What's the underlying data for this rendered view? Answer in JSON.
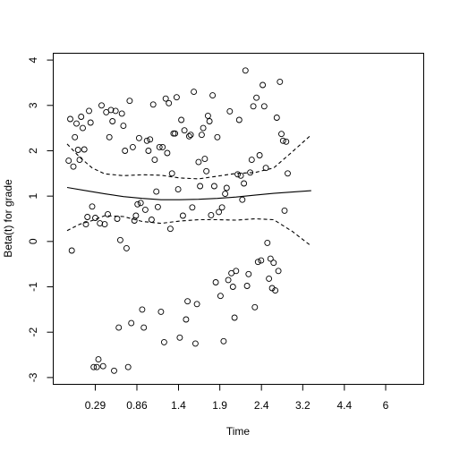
{
  "chart_data": {
    "type": "scatter",
    "title": "",
    "xlabel": "Time",
    "ylabel": "Beta(t) for grade",
    "x_axis": {
      "scale": "rank (transformed)",
      "range": [
        0,
        100
      ],
      "ticks": [
        {
          "label": "0.29",
          "pos": 9
        },
        {
          "label": "0.86",
          "pos": 22.3
        },
        {
          "label": "1.4",
          "pos": 35.6
        },
        {
          "label": "1.9",
          "pos": 48.8
        },
        {
          "label": "2.4",
          "pos": 62.1
        },
        {
          "label": "3.2",
          "pos": 75.3
        },
        {
          "label": "4.4",
          "pos": 88.6
        },
        {
          "label": "6",
          "pos": 101.8
        }
      ]
    },
    "y_axis": {
      "range": [
        -3.15,
        4.15
      ],
      "ticks": [
        -3,
        -2,
        -1,
        0,
        1,
        2,
        3,
        4
      ]
    },
    "grid": false,
    "series": [
      {
        "kind": "points",
        "points": [
          [
            0.5,
            1.78
          ],
          [
            1.0,
            2.7
          ],
          [
            1.5,
            -0.2
          ],
          [
            2.0,
            1.65
          ],
          [
            2.5,
            2.3
          ],
          [
            3.0,
            2.6
          ],
          [
            3.5,
            2.02
          ],
          [
            4.0,
            1.8
          ],
          [
            4.5,
            2.75
          ],
          [
            5.0,
            2.5
          ],
          [
            5.5,
            2.03
          ],
          [
            6.0,
            0.38
          ],
          [
            6.5,
            0.54
          ],
          [
            7.0,
            2.88
          ],
          [
            7.5,
            2.62
          ],
          [
            8.0,
            0.77
          ],
          [
            8.5,
            -2.77
          ],
          [
            9.0,
            0.52
          ],
          [
            9.5,
            -2.77
          ],
          [
            10.0,
            -2.6
          ],
          [
            10.5,
            0.4
          ],
          [
            11.0,
            3.0
          ],
          [
            11.5,
            -2.75
          ],
          [
            12.0,
            0.38
          ],
          [
            12.5,
            2.85
          ],
          [
            13.0,
            0.6
          ],
          [
            13.5,
            2.3
          ],
          [
            14.0,
            2.9
          ],
          [
            14.5,
            2.65
          ],
          [
            15.0,
            -2.85
          ],
          [
            15.5,
            2.88
          ],
          [
            16.0,
            0.5
          ],
          [
            16.5,
            -1.9
          ],
          [
            17.0,
            0.03
          ],
          [
            17.5,
            2.82
          ],
          [
            18.0,
            2.55
          ],
          [
            18.5,
            2.0
          ],
          [
            19.0,
            -0.15
          ],
          [
            19.5,
            -2.77
          ],
          [
            20.0,
            3.1
          ],
          [
            20.5,
            -1.8
          ],
          [
            21.0,
            2.08
          ],
          [
            21.5,
            0.46
          ],
          [
            22.0,
            0.57
          ],
          [
            22.5,
            0.82
          ],
          [
            23.0,
            2.28
          ],
          [
            23.5,
            0.85
          ],
          [
            24.0,
            -1.5
          ],
          [
            24.5,
            -1.9
          ],
          [
            25.0,
            0.7
          ],
          [
            25.5,
            2.22
          ],
          [
            26.0,
            2.0
          ],
          [
            26.5,
            2.25
          ],
          [
            27.0,
            0.48
          ],
          [
            27.5,
            3.02
          ],
          [
            28.0,
            1.8
          ],
          [
            28.5,
            1.1
          ],
          [
            29.0,
            0.76
          ],
          [
            29.5,
            2.08
          ],
          [
            30.0,
            -1.55
          ],
          [
            30.5,
            2.08
          ],
          [
            31.0,
            -2.22
          ],
          [
            31.5,
            3.15
          ],
          [
            32.0,
            1.95
          ],
          [
            32.5,
            3.05
          ],
          [
            33.0,
            0.28
          ],
          [
            33.5,
            1.5
          ],
          [
            34.0,
            2.38
          ],
          [
            34.5,
            2.38
          ],
          [
            35.0,
            3.18
          ],
          [
            35.5,
            1.15
          ],
          [
            36.0,
            -2.12
          ],
          [
            36.5,
            2.68
          ],
          [
            37.0,
            0.57
          ],
          [
            37.5,
            2.45
          ],
          [
            38.0,
            -1.72
          ],
          [
            38.5,
            -1.32
          ],
          [
            39.0,
            2.32
          ],
          [
            39.5,
            2.35
          ],
          [
            40.0,
            0.75
          ],
          [
            40.5,
            3.3
          ],
          [
            41.0,
            -2.25
          ],
          [
            41.5,
            -1.38
          ],
          [
            42.0,
            1.75
          ],
          [
            42.5,
            1.22
          ],
          [
            43.0,
            2.35
          ],
          [
            43.5,
            2.5
          ],
          [
            44.0,
            1.82
          ],
          [
            44.5,
            1.55
          ],
          [
            45.0,
            2.77
          ],
          [
            45.5,
            2.65
          ],
          [
            46.0,
            0.58
          ],
          [
            46.5,
            3.22
          ],
          [
            47.0,
            1.22
          ],
          [
            47.5,
            -0.9
          ],
          [
            48.0,
            2.3
          ],
          [
            48.5,
            0.65
          ],
          [
            49.0,
            -1.2
          ],
          [
            49.5,
            0.75
          ],
          [
            50.0,
            -2.2
          ],
          [
            50.5,
            1.05
          ],
          [
            51.0,
            1.18
          ],
          [
            51.5,
            -0.85
          ],
          [
            52.0,
            2.87
          ],
          [
            52.5,
            -0.7
          ],
          [
            53.0,
            -1.0
          ],
          [
            53.5,
            -1.68
          ],
          [
            54.0,
            -0.65
          ],
          [
            54.5,
            1.48
          ],
          [
            55.0,
            2.68
          ],
          [
            55.5,
            1.45
          ],
          [
            56.0,
            0.92
          ],
          [
            56.5,
            1.28
          ],
          [
            57.0,
            3.77
          ],
          [
            57.5,
            -0.98
          ],
          [
            58.0,
            -0.72
          ],
          [
            58.5,
            1.52
          ],
          [
            59.0,
            1.8
          ],
          [
            59.5,
            2.98
          ],
          [
            60.0,
            -1.45
          ],
          [
            60.5,
            3.17
          ],
          [
            61.0,
            -0.45
          ],
          [
            61.5,
            1.9
          ],
          [
            62.0,
            -0.42
          ],
          [
            62.5,
            3.45
          ],
          [
            63.0,
            2.98
          ],
          [
            63.5,
            1.62
          ],
          [
            64.0,
            -0.03
          ],
          [
            64.5,
            -0.82
          ],
          [
            65.0,
            -0.38
          ],
          [
            65.5,
            -1.03
          ],
          [
            66.0,
            -0.47
          ],
          [
            66.5,
            -1.08
          ],
          [
            67.0,
            2.73
          ],
          [
            67.5,
            -0.65
          ],
          [
            68.0,
            3.52
          ],
          [
            68.5,
            2.37
          ],
          [
            69.0,
            2.22
          ],
          [
            69.5,
            0.68
          ],
          [
            70.0,
            2.2
          ],
          [
            70.5,
            1.5
          ]
        ]
      },
      {
        "kind": "line",
        "style": "solid",
        "points": [
          [
            0,
            1.19
          ],
          [
            6,
            1.12
          ],
          [
            12,
            1.05
          ],
          [
            18,
            0.99
          ],
          [
            24,
            0.95
          ],
          [
            30,
            0.92
          ],
          [
            36,
            0.92
          ],
          [
            42,
            0.93
          ],
          [
            48,
            0.95
          ],
          [
            54,
            0.98
          ],
          [
            60,
            1.02
          ],
          [
            66,
            1.06
          ],
          [
            72,
            1.09
          ],
          [
            78,
            1.12
          ]
        ]
      },
      {
        "kind": "line",
        "style": "dashed",
        "points": [
          [
            0,
            2.15
          ],
          [
            4,
            1.86
          ],
          [
            8,
            1.62
          ],
          [
            12,
            1.49
          ],
          [
            18,
            1.45
          ],
          [
            24,
            1.47
          ],
          [
            30,
            1.46
          ],
          [
            36,
            1.4
          ],
          [
            42,
            1.38
          ],
          [
            48,
            1.44
          ],
          [
            54,
            1.5
          ],
          [
            60,
            1.52
          ],
          [
            66,
            1.62
          ],
          [
            72,
            1.98
          ],
          [
            78,
            2.35
          ]
        ]
      },
      {
        "kind": "line",
        "style": "dashed",
        "points": [
          [
            0,
            0.24
          ],
          [
            4,
            0.38
          ],
          [
            8,
            0.46
          ],
          [
            12,
            0.57
          ],
          [
            18,
            0.55
          ],
          [
            24,
            0.44
          ],
          [
            30,
            0.4
          ],
          [
            36,
            0.45
          ],
          [
            42,
            0.48
          ],
          [
            48,
            0.48
          ],
          [
            54,
            0.47
          ],
          [
            60,
            0.5
          ],
          [
            66,
            0.48
          ],
          [
            72,
            0.22
          ],
          [
            78,
            -0.1
          ]
        ]
      }
    ]
  }
}
